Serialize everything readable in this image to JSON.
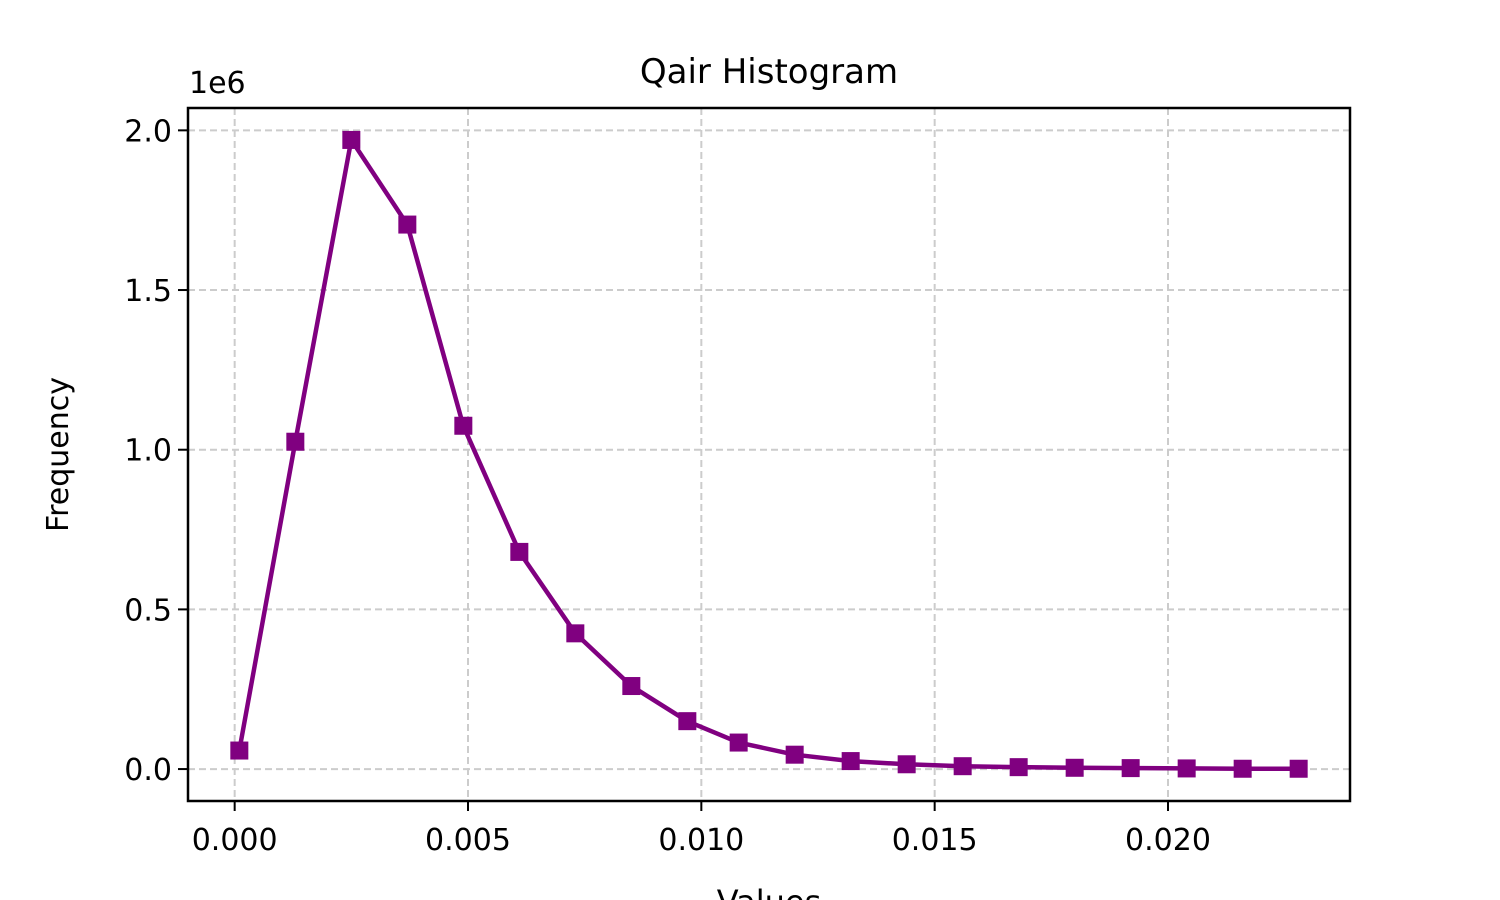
{
  "chart_data": {
    "type": "line",
    "title": "Qair Histogram",
    "xlabel": "Values",
    "ylabel": "Frequency",
    "y_multiplier_label": "1e6",
    "xlim": [
      -0.001,
      0.0239
    ],
    "ylim": [
      -0.1,
      2.07
    ],
    "x_ticks": [
      0.0,
      0.005,
      0.01,
      0.015,
      0.02
    ],
    "x_tick_labels": [
      "0.000",
      "0.005",
      "0.010",
      "0.015",
      "0.020"
    ],
    "y_ticks": [
      0.0,
      0.5,
      1.0,
      1.5,
      2.0
    ],
    "y_tick_labels": [
      "0.0",
      "0.5",
      "1.0",
      "1.5",
      "2.0"
    ],
    "grid": true,
    "color": "#800080",
    "marker": "square",
    "series": [
      {
        "x": [
          0.0001,
          0.0013,
          0.0025,
          0.0037,
          0.0049,
          0.0061,
          0.0073,
          0.0085,
          0.0097,
          0.0108,
          0.012,
          0.0132,
          0.0144,
          0.0156,
          0.0168,
          0.018,
          0.0192,
          0.0204,
          0.0216,
          0.0228
        ],
        "values": [
          0.058,
          1.025,
          1.97,
          1.705,
          1.075,
          0.68,
          0.425,
          0.26,
          0.15,
          0.083,
          0.045,
          0.025,
          0.015,
          0.009,
          0.006,
          0.004,
          0.003,
          0.002,
          0.001,
          0.001
        ]
      }
    ]
  }
}
